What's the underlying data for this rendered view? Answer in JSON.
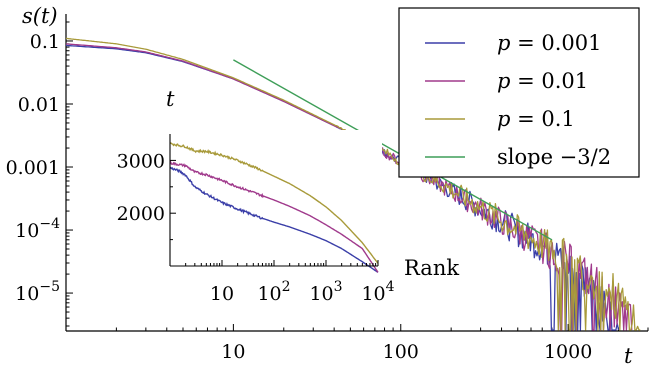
{
  "chart_data": [
    {
      "type": "line",
      "scale": "log-log",
      "ylabel": "s(t)",
      "xlabel": "t",
      "xlim": [
        1,
        3000
      ],
      "ylim": [
        2.5e-06,
        0.2
      ],
      "x_ticks": [
        {
          "value": 10,
          "label": "10"
        },
        {
          "value": 100,
          "label": "100"
        },
        {
          "value": 1000,
          "label": "1000"
        }
      ],
      "y_ticks": [
        {
          "value": 0.1,
          "label": "0.1"
        },
        {
          "value": 0.01,
          "label": "0.01"
        },
        {
          "value": 0.001,
          "label": "0.001"
        },
        {
          "value": 0.0001,
          "label": "10",
          "exp": "−4"
        },
        {
          "value": 1e-05,
          "label": "10",
          "exp": "−5"
        }
      ],
      "legend": {
        "placement": "top-right"
      },
      "series": [
        {
          "name": "p = 0.001",
          "prefix": "p",
          "value": "= 0.001",
          "color": "#3b3fa8",
          "x": [
            1,
            2,
            3,
            5,
            10,
            20,
            50,
            100,
            200,
            500,
            1000,
            1300,
            1600,
            2000
          ],
          "y": [
            0.085,
            0.075,
            0.065,
            0.047,
            0.025,
            0.011,
            0.0034,
            0.0012,
            0.00042,
            9.5e-05,
            3.1e-05,
            1.5e-05,
            5.5e-06,
            2.8e-06
          ]
        },
        {
          "name": "p = 0.01",
          "prefix": "p",
          "value": "= 0.01",
          "color": "#a03a8c",
          "x": [
            1,
            2,
            3,
            5,
            10,
            20,
            50,
            100,
            200,
            500,
            1000,
            1500,
            2000,
            2400
          ],
          "y": [
            0.09,
            0.078,
            0.067,
            0.048,
            0.025,
            0.011,
            0.0034,
            0.0012,
            0.00042,
            9.5e-05,
            3.1e-05,
            1.3e-05,
            5.5e-06,
            2.8e-06
          ]
        },
        {
          "name": "p = 0.1",
          "prefix": "p",
          "value": "= 0.1",
          "color": "#a89a3a",
          "x": [
            1,
            2,
            3,
            5,
            10,
            20,
            50,
            100,
            200,
            500,
            1000,
            1500,
            2000,
            2700
          ],
          "y": [
            0.11,
            0.09,
            0.074,
            0.051,
            0.026,
            0.0115,
            0.0035,
            0.00125,
            0.00044,
            0.0001,
            3.4e-05,
            1.6e-05,
            7.5e-06,
            2.8e-06
          ]
        },
        {
          "name": "slope −3/2",
          "prefix": "",
          "value": "slope −3/2",
          "color": "#3e9e58",
          "x": [
            10,
            800
          ],
          "y": [
            0.05,
            6.99e-05
          ]
        }
      ]
    },
    {
      "type": "line",
      "scale": "log-x",
      "ylabel": "t",
      "xlabel": "Rank",
      "xlim": [
        1,
        10000
      ],
      "ylim": [
        1000,
        3500
      ],
      "x_ticks": [
        {
          "value": 10,
          "label": "10"
        },
        {
          "value": 100,
          "label": "10",
          "exp": "2"
        },
        {
          "value": 1000,
          "label": "10",
          "exp": "3"
        },
        {
          "value": 10000,
          "label": "10",
          "exp": "4"
        }
      ],
      "y_ticks": [
        {
          "value": 3000,
          "label": "3000"
        },
        {
          "value": 2000,
          "label": "2000"
        },
        {
          "value": 1000,
          "label": ""
        }
      ],
      "series": [
        {
          "color": "#3b3fa8",
          "x": [
            1,
            1.5,
            2,
            3,
            5,
            10,
            20,
            50,
            100,
            200,
            500,
            1000,
            2000,
            5000,
            10000
          ],
          "y": [
            2860,
            2800,
            2720,
            2500,
            2360,
            2200,
            2080,
            1930,
            1830,
            1740,
            1600,
            1480,
            1330,
            1080,
            880
          ]
        },
        {
          "color": "#a03a8c",
          "x": [
            1,
            2,
            3,
            5,
            10,
            20,
            50,
            100,
            200,
            500,
            1000,
            2000,
            5000,
            10000
          ],
          "y": [
            2950,
            2900,
            2780,
            2730,
            2620,
            2500,
            2360,
            2250,
            2130,
            1950,
            1780,
            1600,
            1330,
            880
          ]
        },
        {
          "color": "#a89a3a",
          "x": [
            1,
            2,
            3,
            5,
            10,
            20,
            50,
            100,
            200,
            500,
            1000,
            2000,
            5000,
            10000
          ],
          "y": [
            3320,
            3260,
            3180,
            3170,
            3100,
            3000,
            2840,
            2700,
            2560,
            2330,
            2120,
            1860,
            1440,
            1050
          ]
        }
      ]
    }
  ]
}
